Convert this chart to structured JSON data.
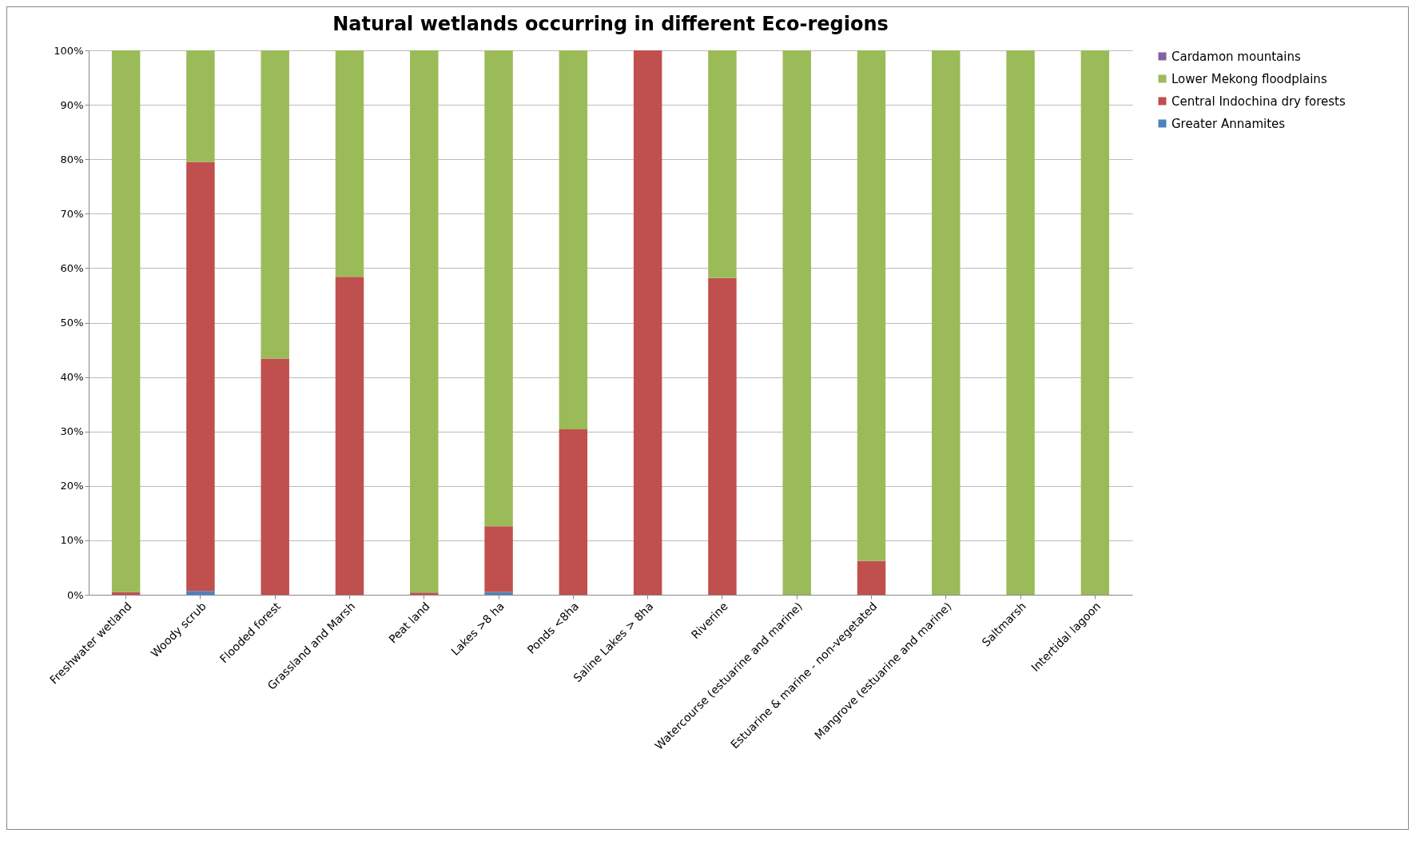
{
  "chart_data": {
    "type": "bar",
    "title": "Natural wetlands occurring in different Eco-regions",
    "stacked": true,
    "grid": "y",
    "legend": "right",
    "categories": [
      "Freshwater wetland",
      "Woody scrub",
      "Flooded forest",
      "Grassland and Marsh",
      "Peat land",
      "Lakes >8 ha",
      "Ponds <8ha",
      "Saline Lakes > 8ha",
      "Riverine",
      "Watercourse (estuarine and marine)",
      "Estuarine & marine - non-vegetated",
      "Mangrove (estuarine and marine)",
      "Saltmarsh",
      "Intertidal lagoon"
    ],
    "series": [
      {
        "name": "Greater Annamites",
        "color": "#4f81bd",
        "values": [
          0,
          0.7,
          0,
          0,
          0,
          0.5,
          0,
          0,
          0,
          0,
          0,
          0,
          0,
          0
        ]
      },
      {
        "name": "Central Indochina dry forests",
        "color": "#c0504d",
        "values": [
          0.5,
          78.8,
          43.4,
          58.4,
          0.4,
          12.1,
          30.4,
          100,
          58.2,
          0,
          6.2,
          0,
          0,
          0
        ]
      },
      {
        "name": "Lower Mekong floodplains",
        "color": "#9bbb59",
        "values": [
          99.5,
          20.5,
          56.6,
          41.6,
          99.6,
          87.4,
          69.6,
          0,
          41.8,
          100,
          93.8,
          100,
          100,
          100
        ]
      },
      {
        "name": "Cardamon mountains",
        "color": "#8064a2",
        "values": [
          0,
          0,
          0,
          0,
          0,
          0,
          0,
          0,
          0,
          0,
          0,
          0,
          0,
          0
        ]
      }
    ],
    "ylim": [
      0,
      100
    ],
    "yticks": [
      {
        "value": 0,
        "label": "0%"
      },
      {
        "value": 10,
        "label": "10%"
      },
      {
        "value": 20,
        "label": "20%"
      },
      {
        "value": 30,
        "label": "30%"
      },
      {
        "value": 40,
        "label": "40%"
      },
      {
        "value": 50,
        "label": "50%"
      },
      {
        "value": 60,
        "label": "60%"
      },
      {
        "value": 70,
        "label": "70%"
      },
      {
        "value": 80,
        "label": "80%"
      },
      {
        "value": 90,
        "label": "90%"
      },
      {
        "value": 100,
        "label": "100%"
      }
    ]
  }
}
